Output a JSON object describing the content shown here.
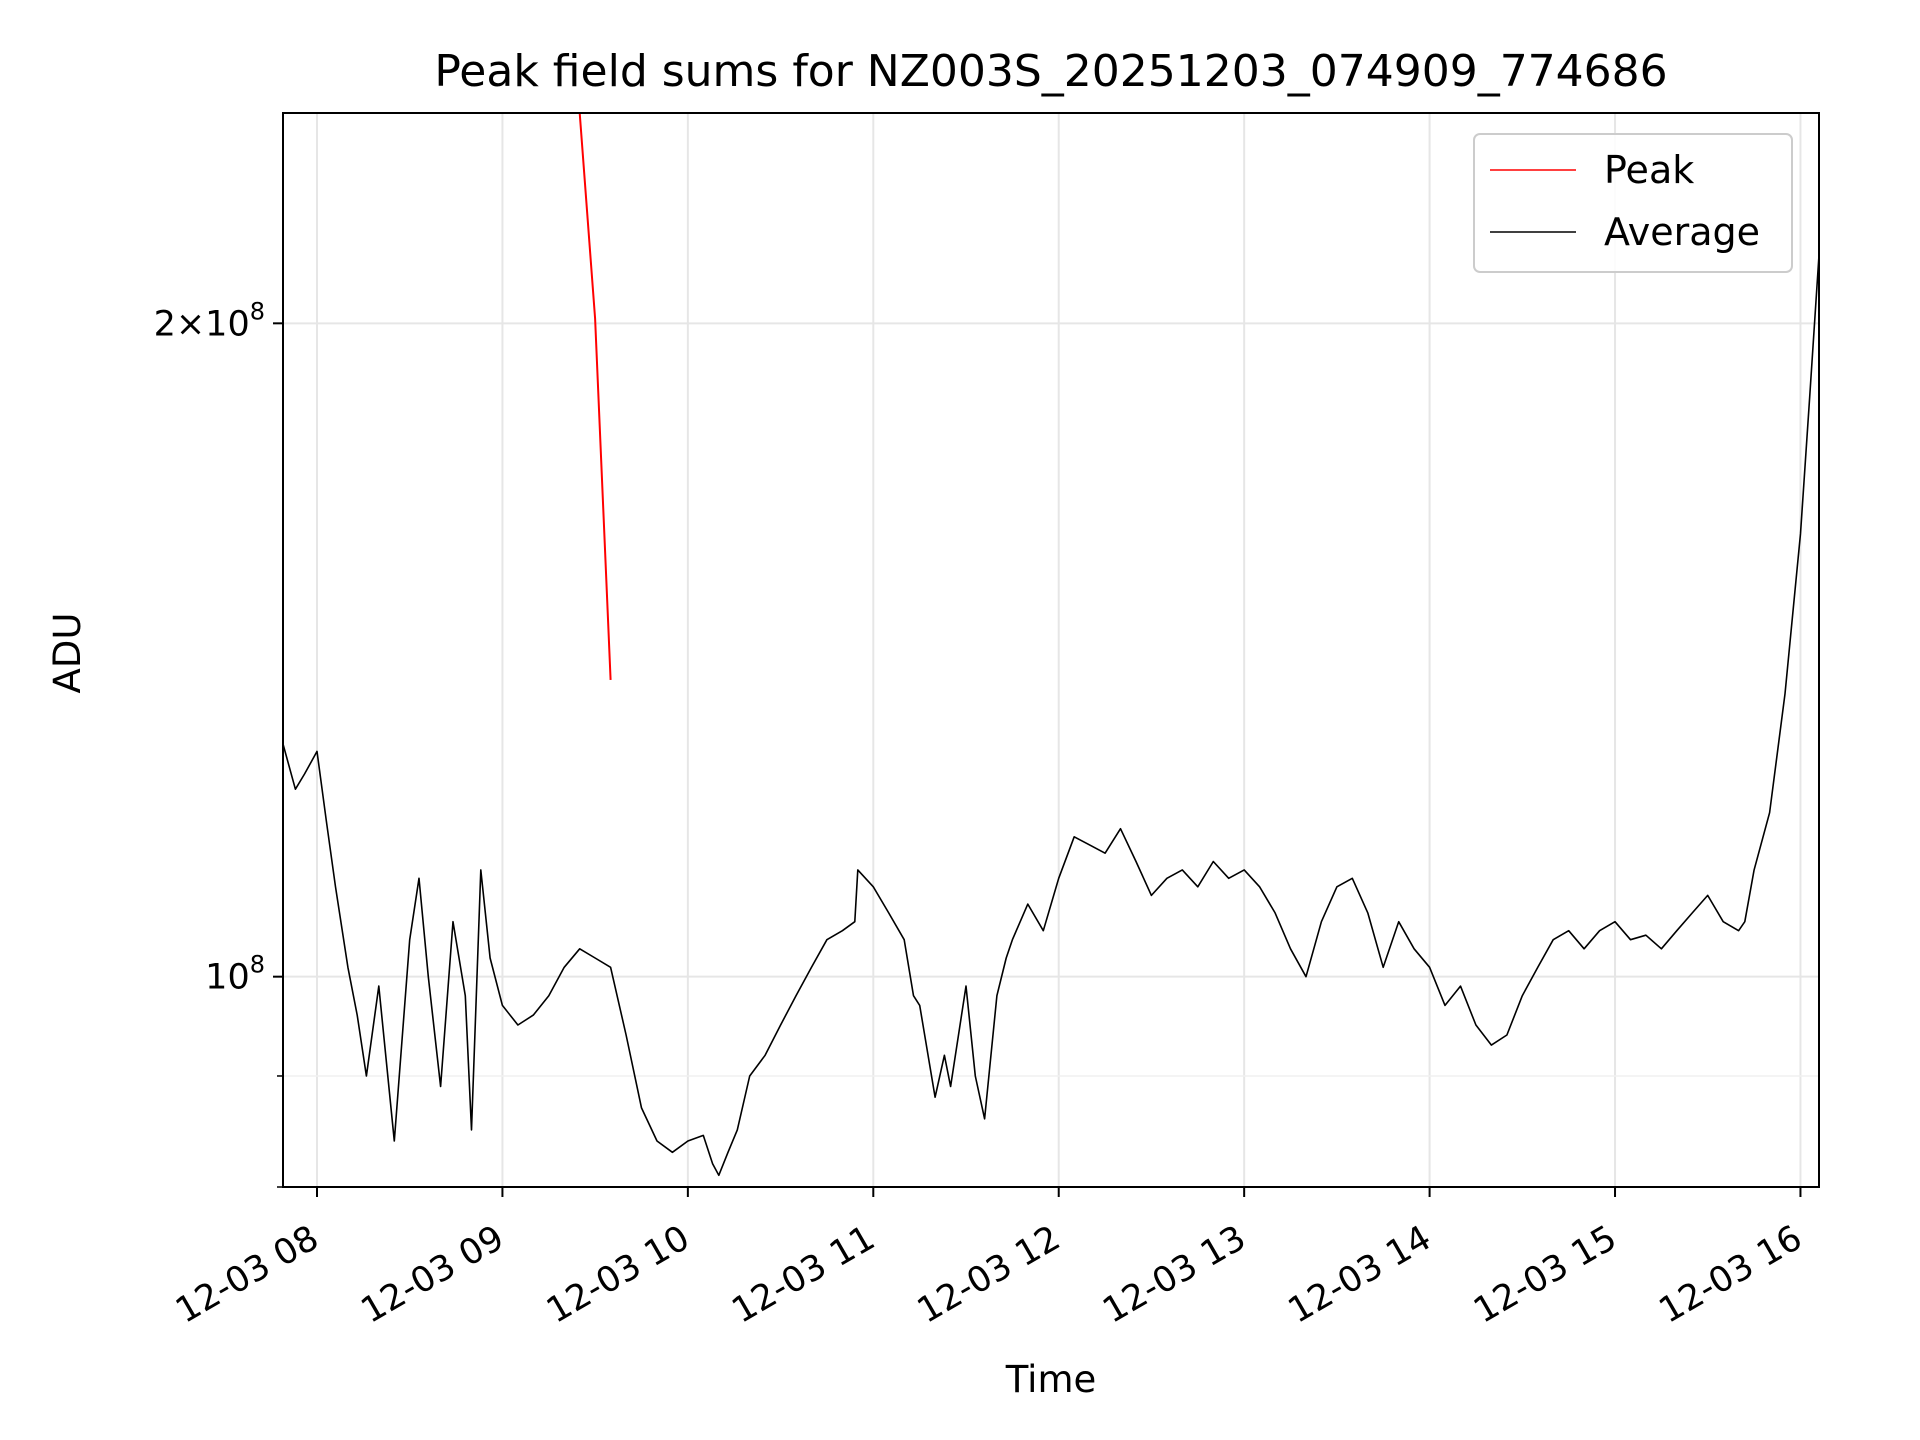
{
  "chart_data": {
    "type": "line",
    "title": "Peak field sums for NZ003S_20251203_074909_774686",
    "xlabel": "Time",
    "ylabel": "ADU",
    "x_scale": "time",
    "y_scale": "log",
    "xlim": [
      "12-03 07:49",
      "12-03 16:06"
    ],
    "ylim": [
      80000000,
      250000000
    ],
    "x_ticks": [
      "12-03 08",
      "12-03 09",
      "12-03 10",
      "12-03 11",
      "12-03 12",
      "12-03 13",
      "12-03 14",
      "12-03 15",
      "12-03 16"
    ],
    "y_ticks": [
      {
        "value": 100000000,
        "label": "10^8"
      },
      {
        "value": 200000000,
        "label": "2×10^8"
      }
    ],
    "grid": true,
    "legend_position": "top-right",
    "series": [
      {
        "name": "Peak",
        "color": "#ff0000",
        "x": [
          "12-03 07:49",
          "12-03 07:55",
          "12-03 08:00",
          "12-03 08:05",
          "12-03 08:10",
          "12-03 08:15",
          "12-03 08:20",
          "12-03 08:25",
          "12-03 08:30",
          "12-03 08:35",
          "12-03 08:40",
          "12-03 08:45",
          "12-03 08:50",
          "12-03 08:55",
          "12-03 09:00",
          "12-03 09:05",
          "12-03 09:10",
          "12-03 09:15",
          "12-03 09:20",
          "12-03 09:25",
          "12-03 09:30",
          "12-03 09:35"
        ],
        "values": [
          250000000,
          250000000,
          250000000,
          250000000,
          250000000,
          250000000,
          250000000,
          250000000,
          250000000,
          250000000,
          250000000,
          250000000,
          250000000,
          250000000,
          250000000,
          250000000,
          250000000,
          250000000,
          250000000,
          250000000,
          201000000,
          137000000
        ]
      },
      {
        "name": "Average",
        "color": "#000000",
        "x": [
          "12-03 07:49",
          "12-03 07:53",
          "12-03 07:56",
          "12-03 08:00",
          "12-03 08:03",
          "12-03 08:06",
          "12-03 08:10",
          "12-03 08:13",
          "12-03 08:16",
          "12-03 08:20",
          "12-03 08:25",
          "12-03 08:30",
          "12-03 08:33",
          "12-03 08:36",
          "12-03 08:40",
          "12-03 08:44",
          "12-03 08:48",
          "12-03 08:50",
          "12-03 08:53",
          "12-03 08:56",
          "12-03 09:00",
          "12-03 09:05",
          "12-03 09:10",
          "12-03 09:15",
          "12-03 09:20",
          "12-03 09:25",
          "12-03 09:30",
          "12-03 09:35",
          "12-03 09:40",
          "12-03 09:45",
          "12-03 09:50",
          "12-03 09:55",
          "12-03 10:00",
          "12-03 10:05",
          "12-03 10:08",
          "12-03 10:10",
          "12-03 10:13",
          "12-03 10:16",
          "12-03 10:20",
          "12-03 10:25",
          "12-03 10:30",
          "12-03 10:35",
          "12-03 10:40",
          "12-03 10:45",
          "12-03 10:50",
          "12-03 10:54",
          "12-03 10:55",
          "12-03 11:00",
          "12-03 11:05",
          "12-03 11:10",
          "12-03 11:13",
          "12-03 11:15",
          "12-03 11:20",
          "12-03 11:23",
          "12-03 11:25",
          "12-03 11:30",
          "12-03 11:33",
          "12-03 11:36",
          "12-03 11:40",
          "12-03 11:43",
          "12-03 11:45",
          "12-03 11:50",
          "12-03 11:55",
          "12-03 12:00",
          "12-03 12:05",
          "12-03 12:10",
          "12-03 12:15",
          "12-03 12:20",
          "12-03 12:25",
          "12-03 12:30",
          "12-03 12:35",
          "12-03 12:40",
          "12-03 12:45",
          "12-03 12:50",
          "12-03 12:55",
          "12-03 13:00",
          "12-03 13:05",
          "12-03 13:10",
          "12-03 13:15",
          "12-03 13:20",
          "12-03 13:25",
          "12-03 13:30",
          "12-03 13:35",
          "12-03 13:40",
          "12-03 13:45",
          "12-03 13:50",
          "12-03 13:55",
          "12-03 14:00",
          "12-03 14:05",
          "12-03 14:10",
          "12-03 14:15",
          "12-03 14:20",
          "12-03 14:25",
          "12-03 14:30",
          "12-03 14:35",
          "12-03 14:40",
          "12-03 14:45",
          "12-03 14:50",
          "12-03 14:55",
          "12-03 15:00",
          "12-03 15:05",
          "12-03 15:10",
          "12-03 15:15",
          "12-03 15:20",
          "12-03 15:25",
          "12-03 15:30",
          "12-03 15:35",
          "12-03 15:40",
          "12-03 15:42",
          "12-03 15:45",
          "12-03 15:50",
          "12-03 15:55",
          "12-03 16:00",
          "12-03 16:03",
          "12-03 16:06"
        ],
        "values": [
          128000000,
          122000000,
          124000000,
          127000000,
          118000000,
          110000000,
          101000000,
          96000000,
          90000000,
          99000000,
          84000000,
          104000000,
          111000000,
          100000000,
          89000000,
          106000000,
          98000000,
          85000000,
          112000000,
          102000000,
          97000000,
          95000000,
          96000000,
          98000000,
          101000000,
          103000000,
          102000000,
          101000000,
          94000000,
          87000000,
          84000000,
          83000000,
          84000000,
          84500000,
          82000000,
          81000000,
          83000000,
          85000000,
          90000000,
          92000000,
          95000000,
          98000000,
          101000000,
          104000000,
          105000000,
          106000000,
          112000000,
          110000000,
          107000000,
          104000000,
          98000000,
          97000000,
          88000000,
          92000000,
          89000000,
          99000000,
          90000000,
          86000000,
          98000000,
          102000000,
          104000000,
          108000000,
          105000000,
          111000000,
          116000000,
          115000000,
          114000000,
          117000000,
          113000000,
          109000000,
          111000000,
          112000000,
          110000000,
          113000000,
          111000000,
          112000000,
          110000000,
          107000000,
          103000000,
          100000000,
          106000000,
          110000000,
          111000000,
          107000000,
          101000000,
          106000000,
          103000000,
          101000000,
          97000000,
          99000000,
          95000000,
          93000000,
          94000000,
          98000000,
          101000000,
          104000000,
          105000000,
          103000000,
          105000000,
          106000000,
          104000000,
          104500000,
          103000000,
          105000000,
          107000000,
          109000000,
          106000000,
          105000000,
          106000000,
          112000000,
          119000000,
          135000000,
          160000000,
          185000000,
          215000000
        ]
      }
    ]
  }
}
